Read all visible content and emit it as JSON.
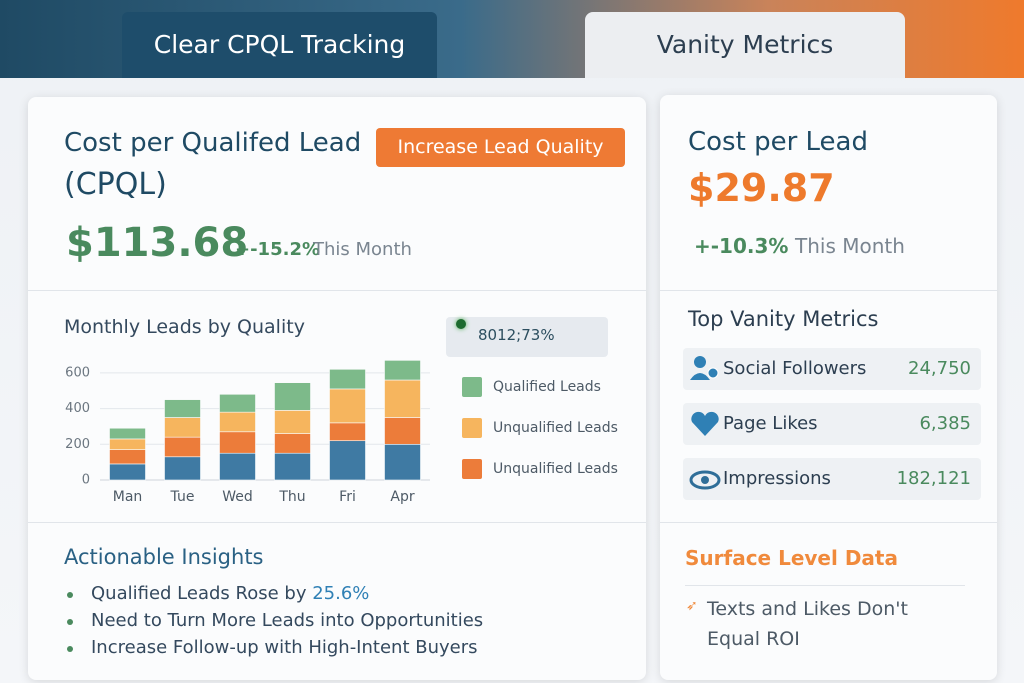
{
  "tabs": {
    "active": "Clear CPQL Tracking",
    "inactive": "Vanity Metrics"
  },
  "cpql": {
    "title_line1": "Cost per Qualifed Lead",
    "title_line2": "(CPQL)",
    "button": "Increase  Lead Quality",
    "value": "$113.68",
    "change": "+-15.2%",
    "period": "This Month"
  },
  "chart_data": {
    "type": "stacked_bar",
    "title": "Monthly Leads by Quality",
    "legend_note": "8012;73%",
    "categories": [
      "Man",
      "Tue",
      "Wed",
      "Thu",
      "Fri",
      "Apr"
    ],
    "series": [
      {
        "color": "#3f7aa3",
        "values": [
          90,
          130,
          150,
          150,
          220,
          200
        ]
      },
      {
        "name": "Unqualified Leads",
        "color": "#ec7c3a",
        "values": [
          80,
          110,
          120,
          110,
          100,
          150
        ]
      },
      {
        "name": "Unqualified Leads",
        "color": "#f6b55e",
        "values": [
          60,
          110,
          110,
          130,
          190,
          210
        ]
      },
      {
        "name": "Qualified Leads",
        "color": "#7dba8a",
        "values": [
          60,
          100,
          100,
          155,
          110,
          110
        ]
      }
    ],
    "ylim": [
      0,
      700
    ],
    "yticks": [
      0,
      200,
      400,
      600
    ],
    "grid": true
  },
  "insights": {
    "title": "Actionable Insights",
    "items": [
      {
        "text": "Qualified Leads Rose by",
        "highlight": "25.6%"
      },
      "Need to Turn More Leads into Opportunities",
      "Increase Follow-up with High-Intent Buyers"
    ]
  },
  "cpl": {
    "title": "Cost per Lead",
    "value": "$29.87",
    "change": "+-10.3%",
    "period": "This Month"
  },
  "vanity": {
    "title": "Top Vanity Metrics",
    "rows": [
      [
        "Social Followers",
        "24,750"
      ],
      [
        "Page Likes",
        "6,385"
      ],
      [
        "Impressions",
        "182,121"
      ]
    ]
  },
  "surface": {
    "title": "Surface Level Data",
    "text_lines": [
      "Texts and Likes Don't",
      "Equal ROI"
    ]
  }
}
